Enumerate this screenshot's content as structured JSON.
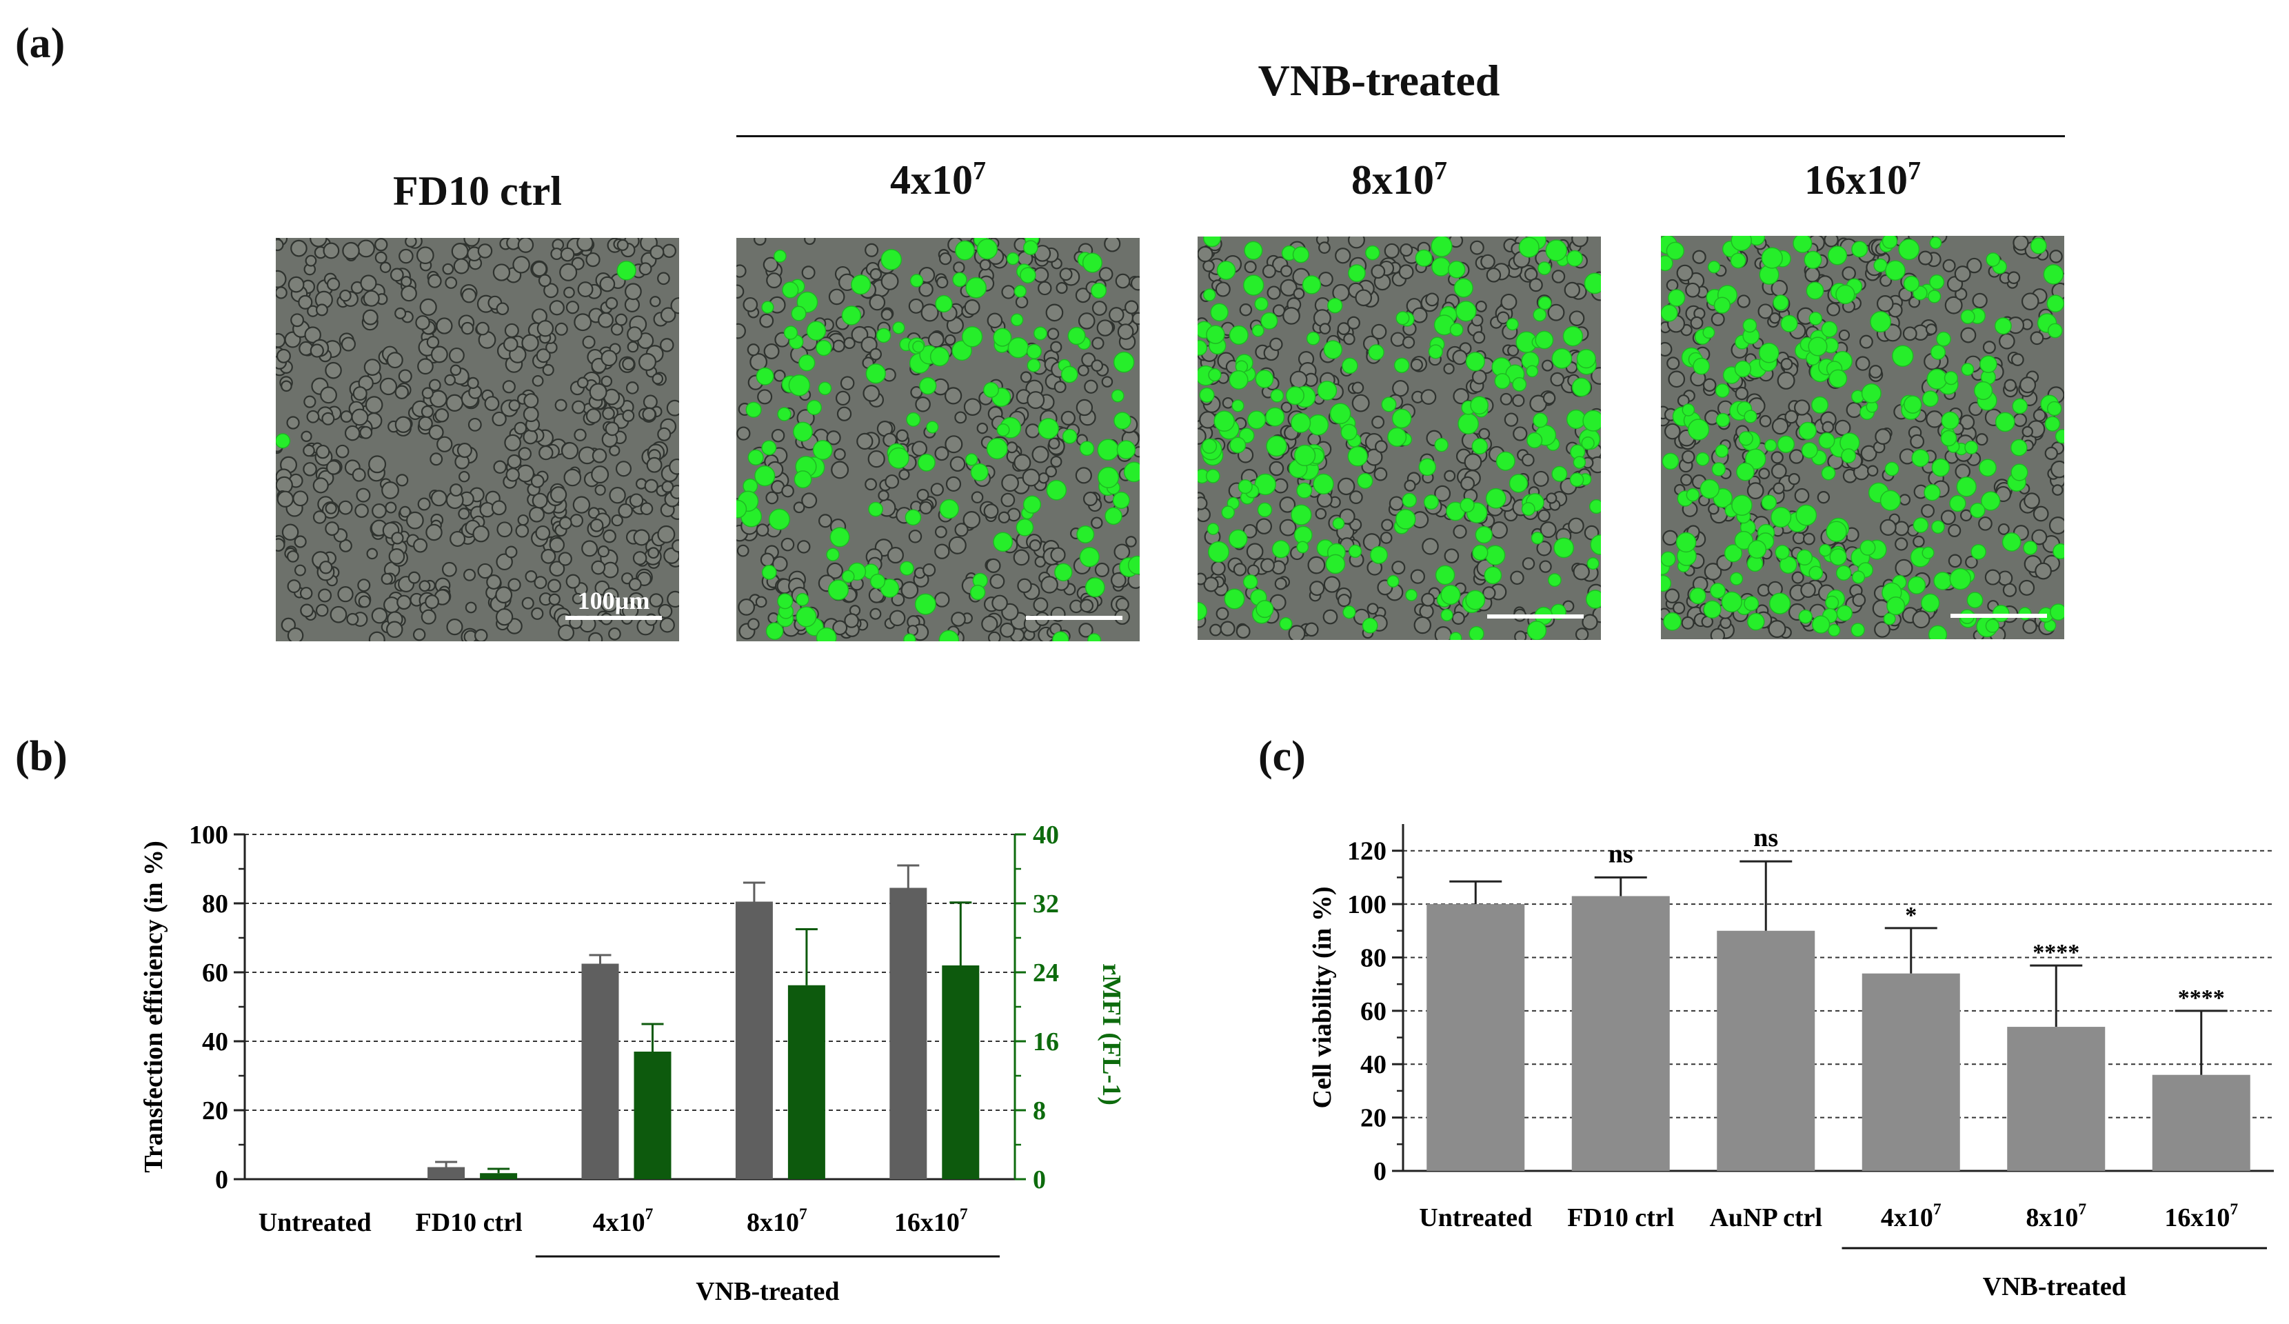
{
  "panels": {
    "a": {
      "label": "(a)",
      "group_title": "VNB-treated",
      "images": [
        {
          "title": "FD10 ctrl",
          "exp": "",
          "scale_label": "100µm",
          "green_level": 0.004
        },
        {
          "title": "4x10",
          "exp": "7",
          "scale_label": "",
          "green_level": 0.32
        },
        {
          "title": "8x10",
          "exp": "7",
          "scale_label": "",
          "green_level": 0.45
        },
        {
          "title": "16x10",
          "exp": "7",
          "scale_label": "",
          "green_level": 0.55
        }
      ]
    },
    "b": {
      "label": "(b)"
    },
    "c": {
      "label": "(c)"
    }
  },
  "chart_data": [
    {
      "type": "bar",
      "id": "b",
      "categories": [
        "Untreated",
        "FD10 ctrl",
        "4x10",
        "8x10",
        "16x10"
      ],
      "category_exp": [
        "",
        "",
        "7",
        "7",
        "7"
      ],
      "ylabel": "Transfection efficiency (in %)",
      "ylim": [
        0,
        100
      ],
      "yticks": [
        "0",
        "20",
        "40",
        "60",
        "80",
        "100"
      ],
      "y2label": "rMFI (FL-1)",
      "y2lim": [
        0,
        40
      ],
      "y2ticks": [
        "0",
        "8",
        "16",
        "24",
        "32",
        "40"
      ],
      "grid": true,
      "group_label": "VNB-treated",
      "series": [
        {
          "name": "Transfection efficiency",
          "axis": "left",
          "color": "#5f5f5f",
          "values": [
            0,
            3.5,
            62.5,
            80.5,
            84.5
          ],
          "errors": [
            0,
            1.5,
            2.5,
            5.5,
            6.5
          ]
        },
        {
          "name": "rMFI (FL-1)",
          "axis": "right",
          "color": "#0d5a0d",
          "values": [
            0,
            0.7,
            14.8,
            22.5,
            24.8
          ],
          "errors": [
            0,
            0.5,
            3.2,
            6.5,
            7.3
          ]
        }
      ],
      "colors": {
        "left_axis": "#222222",
        "right_axis": "#0d6b0d"
      }
    },
    {
      "type": "bar",
      "id": "c",
      "categories": [
        "Untreated",
        "FD10 ctrl",
        "AuNP ctrl",
        "4x10",
        "8x10",
        "16x10"
      ],
      "category_exp": [
        "",
        "",
        "",
        "7",
        "7",
        "7"
      ],
      "ylabel": "Cell viability (in %)",
      "ylim": [
        0,
        130
      ],
      "yticks": [
        "0",
        "20",
        "40",
        "60",
        "80",
        "100",
        "120"
      ],
      "grid": true,
      "group_label": "VNB-treated",
      "series": [
        {
          "name": "Cell viability",
          "color": "#8c8c8c",
          "values": [
            100,
            103,
            90,
            74,
            54,
            36
          ],
          "errors": [
            8.5,
            7,
            26,
            17,
            23,
            24
          ]
        }
      ],
      "annotations": [
        "",
        "ns",
        "ns",
        "*",
        "****",
        "****"
      ]
    }
  ]
}
